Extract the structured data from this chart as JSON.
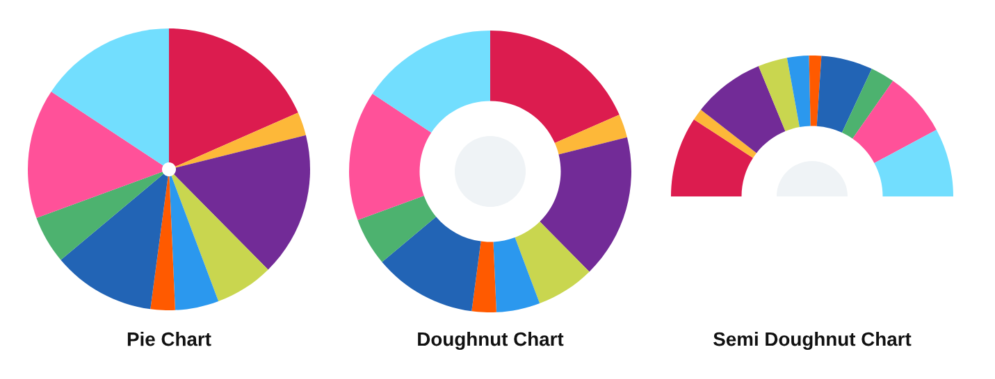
{
  "chart_data": [
    {
      "type": "pie",
      "title": "Pie Chart",
      "categories": [
        null,
        null,
        null,
        null,
        null,
        null,
        null,
        null,
        null,
        null
      ],
      "values": [
        18.4,
        2.7,
        16.5,
        6.7,
        5.0,
        2.8,
        11.8,
        5.5,
        14.9,
        15.7
      ],
      "colors": [
        "#dc1c4f",
        "#fdb839",
        "#722b97",
        "#c9d64f",
        "#2b98ee",
        "#ff5a00",
        "#2264b5",
        "#4db26f",
        "#ff5199",
        "#72defe"
      ]
    },
    {
      "type": "donut",
      "title": "Doughnut Chart",
      "categories": [
        null,
        null,
        null,
        null,
        null,
        null,
        null,
        null,
        null,
        null
      ],
      "values": [
        18.4,
        2.7,
        16.5,
        6.7,
        5.0,
        2.8,
        11.8,
        5.5,
        14.9,
        15.7
      ],
      "colors": [
        "#dc1c4f",
        "#fdb839",
        "#722b97",
        "#c9d64f",
        "#2b98ee",
        "#ff5a00",
        "#2264b5",
        "#4db26f",
        "#ff5199",
        "#72defe"
      ]
    },
    {
      "type": "donut",
      "title": "Semi Doughnut Chart",
      "categories": [
        null,
        null,
        null,
        null,
        null,
        null,
        null,
        null,
        null,
        null
      ],
      "values": [
        18.4,
        2.7,
        16.5,
        6.7,
        5.0,
        2.8,
        11.8,
        5.5,
        14.9,
        15.7
      ],
      "colors": [
        "#dc1c4f",
        "#fdb839",
        "#722b97",
        "#c9d64f",
        "#2b98ee",
        "#ff5a00",
        "#2264b5",
        "#4db26f",
        "#ff5199",
        "#72defe"
      ]
    }
  ]
}
